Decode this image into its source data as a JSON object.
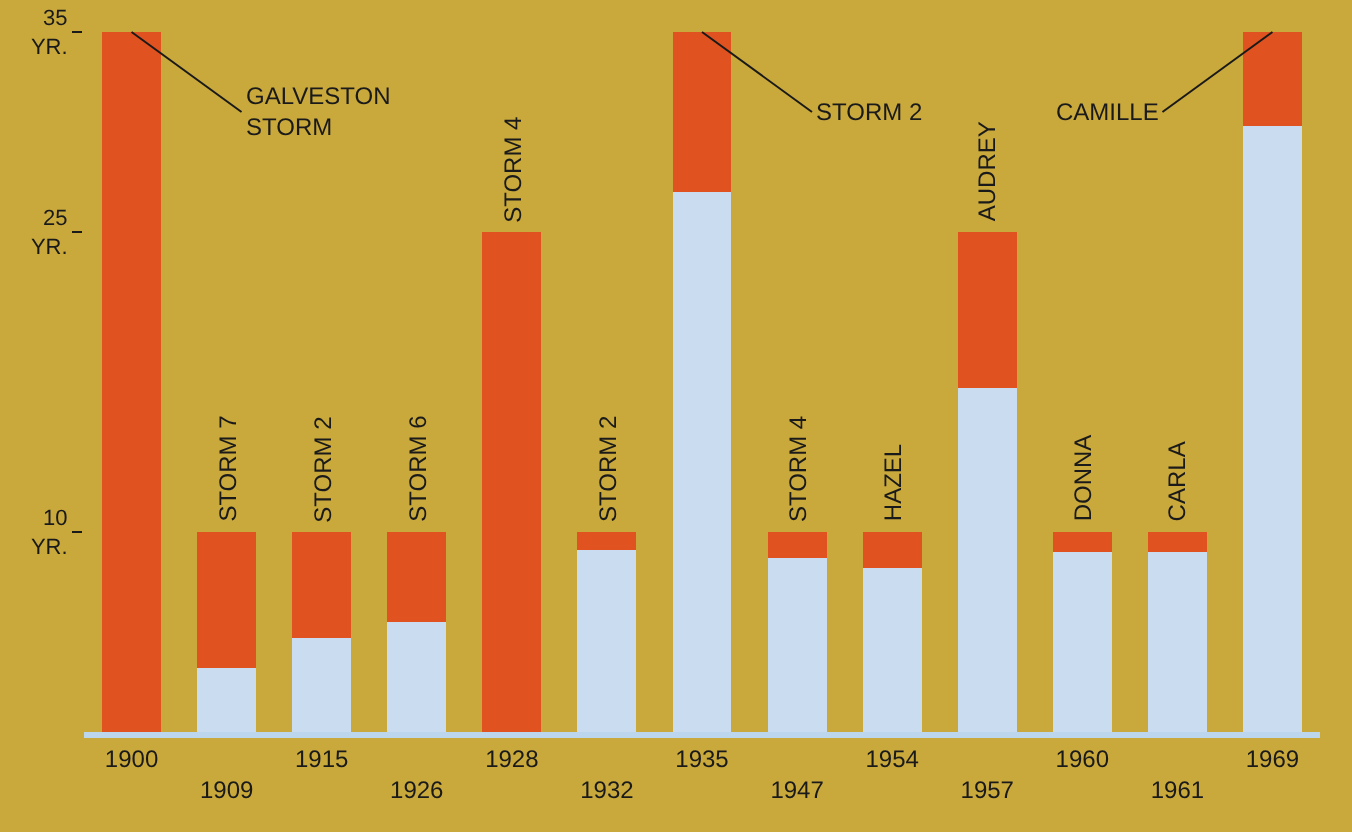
{
  "chart_data": {
    "type": "bar",
    "stacked": true,
    "categories": [
      "1900",
      "1909",
      "1915",
      "1926",
      "1928",
      "1932",
      "1935",
      "1947",
      "1954",
      "1957",
      "1960",
      "1961",
      "1969"
    ],
    "series": [
      {
        "color": "#c9dcf0",
        "values": [
          0,
          3.2,
          4.7,
          5.5,
          0,
          9.1,
          27,
          8.7,
          8.2,
          17.2,
          9,
          9,
          30.3
        ]
      },
      {
        "color": "#e0521f",
        "values": [
          35,
          6.8,
          5.3,
          4.5,
          25,
          0.9,
          8,
          1.3,
          1.8,
          7.8,
          1,
          1,
          4.7
        ]
      }
    ],
    "ylim": [
      0,
      35
    ],
    "yticks": [
      {
        "value": 10,
        "label": "10\nYR."
      },
      {
        "value": 25,
        "label": "25\nYR."
      },
      {
        "value": 35,
        "label": "35\nYR."
      }
    ],
    "grid": false,
    "annotations": [
      {
        "text": "GALVESTON\nSTORM",
        "x": "1900",
        "y": 35
      },
      {
        "text": "STORM 7",
        "x": "1909",
        "y": 10
      },
      {
        "text": "STORM 2",
        "x": "1915",
        "y": 10
      },
      {
        "text": "STORM 6",
        "x": "1926",
        "y": 10
      },
      {
        "text": "STORM 4",
        "x": "1928",
        "y": 25
      },
      {
        "text": "STORM 2",
        "x": "1932",
        "y": 10
      },
      {
        "text": "STORM 2",
        "x": "1935",
        "y": 35
      },
      {
        "text": "STORM 4",
        "x": "1947",
        "y": 10
      },
      {
        "text": "HAZEL",
        "x": "1954",
        "y": 10
      },
      {
        "text": "AUDREY",
        "x": "1957",
        "y": 25
      },
      {
        "text": "DONNA",
        "x": "1960",
        "y": 10
      },
      {
        "text": "CARLA",
        "x": "1961",
        "y": 10
      },
      {
        "text": "CAMILLE",
        "x": "1969",
        "y": 35
      }
    ]
  }
}
